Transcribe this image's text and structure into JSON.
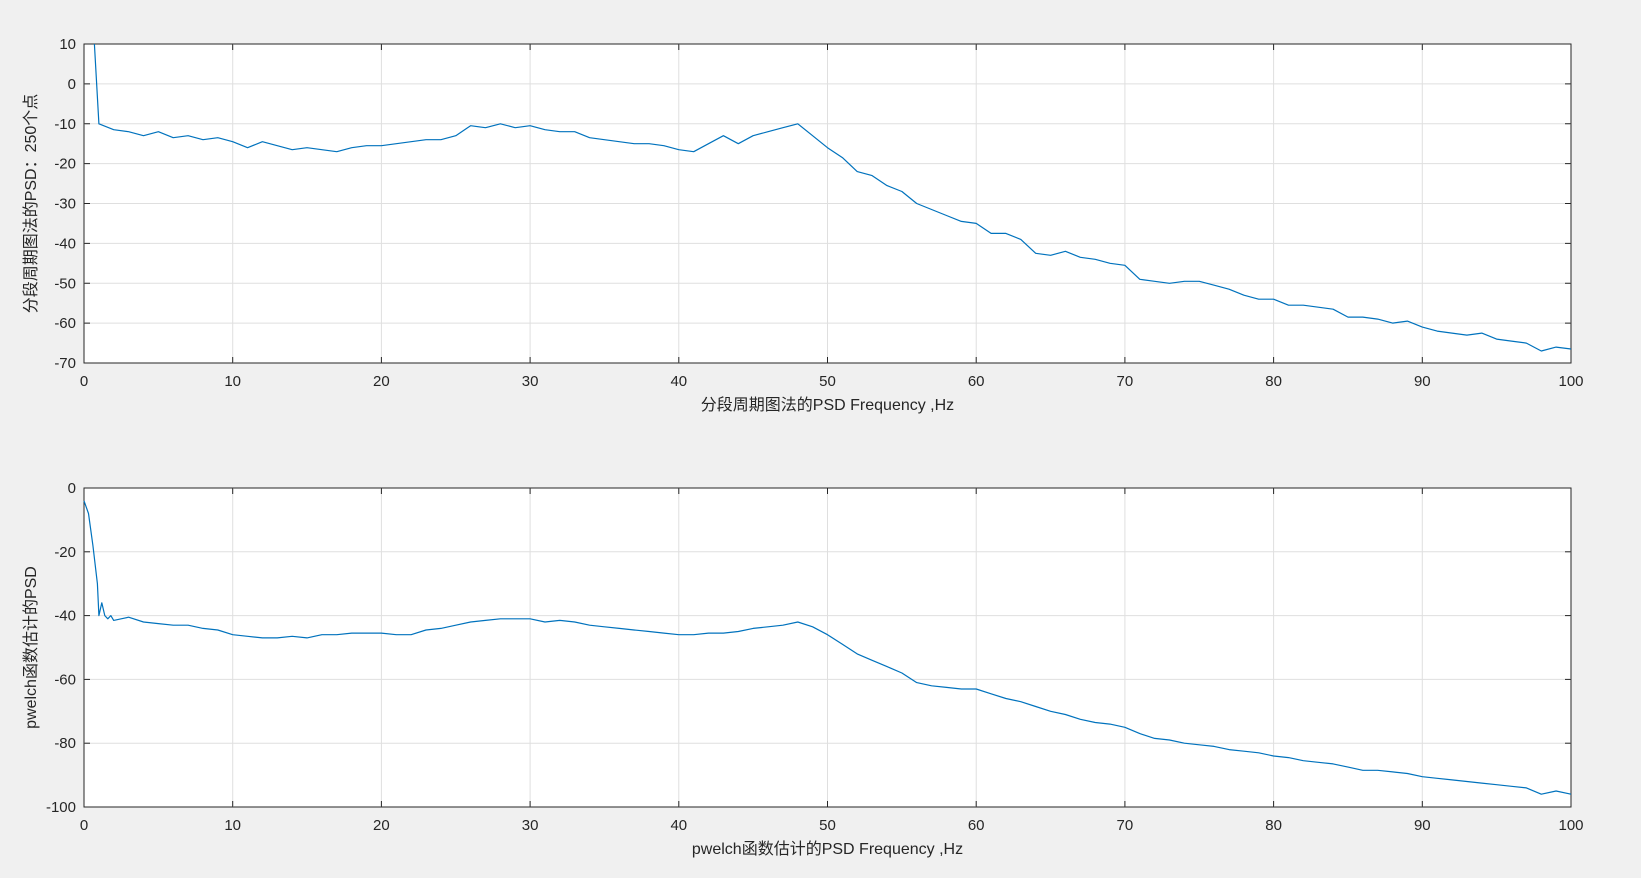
{
  "chart_data": [
    {
      "type": "line",
      "xlabel": "分段周期图法的PSD Frequency ,Hz",
      "ylabel": "分段周期图法的PSD：250个点",
      "xlim": [
        0,
        100
      ],
      "ylim": [
        -70,
        10
      ],
      "xticks": [
        0,
        10,
        20,
        30,
        40,
        50,
        60,
        70,
        80,
        90,
        100
      ],
      "yticks": [
        10,
        0,
        -10,
        -20,
        -30,
        -40,
        -50,
        -60,
        -70
      ],
      "grid": true,
      "color": "#0072bd",
      "series": [
        {
          "x": [
            0.7,
            1,
            2,
            3,
            4,
            5,
            6,
            7,
            8,
            9,
            10,
            11,
            12,
            13,
            14,
            15,
            16,
            17,
            18,
            19,
            20,
            21,
            22,
            23,
            24,
            25,
            26,
            27,
            28,
            29,
            30,
            31,
            32,
            33,
            34,
            35,
            36,
            37,
            38,
            39,
            40,
            41,
            42,
            43,
            44,
            45,
            46,
            47,
            48,
            49,
            50,
            51,
            52,
            53,
            54,
            55,
            56,
            57,
            58,
            59,
            60,
            61,
            62,
            63,
            64,
            65,
            66,
            67,
            68,
            69,
            70,
            71,
            72,
            73,
            74,
            75,
            76,
            77,
            78,
            79,
            80,
            81,
            82,
            83,
            84,
            85,
            86,
            87,
            88,
            89,
            90,
            91,
            92,
            93,
            94,
            95,
            96,
            97,
            98,
            99,
            100
          ],
          "y": [
            10,
            -10,
            -11.5,
            -12,
            -13,
            -12,
            -13.5,
            -13,
            -14,
            -13.5,
            -14.5,
            -16,
            -14.5,
            -15.5,
            -16.5,
            -16,
            -16.5,
            -17,
            -16,
            -15.5,
            -15.5,
            -15,
            -14.5,
            -14,
            -14,
            -13,
            -10.5,
            -11,
            -10,
            -11,
            -10.5,
            -11.5,
            -12,
            -12,
            -13.5,
            -14,
            -14.5,
            -15,
            -15,
            -15.5,
            -16.5,
            -17,
            -15,
            -13,
            -15,
            -13,
            -12,
            -11,
            -10,
            -13,
            -16,
            -18.5,
            -22,
            -23,
            -25.5,
            -27,
            -30,
            -31.5,
            -33,
            -34.5,
            -35,
            -37.5,
            -37.5,
            -39,
            -42.5,
            -43,
            -42,
            -43.5,
            -44,
            -45,
            -45.5,
            -49,
            -49.5,
            -50,
            -49.5,
            -49.5,
            -50.5,
            -51.5,
            -53,
            -54,
            -54,
            -55.5,
            -55.5,
            -56,
            -56.5,
            -58.5,
            -58.5,
            -59,
            -60,
            -59.5,
            -61,
            -62,
            -62.5,
            -63,
            -62.5,
            -64,
            -64.5,
            -65,
            -67,
            -66,
            -66.5
          ]
        }
      ]
    },
    {
      "type": "line",
      "xlabel": "pwelch函数估计的PSD Frequency ,Hz",
      "ylabel": "pwelch函数估计的PSD",
      "xlim": [
        0,
        100
      ],
      "ylim": [
        -100,
        0
      ],
      "xticks": [
        0,
        10,
        20,
        30,
        40,
        50,
        60,
        70,
        80,
        90,
        100
      ],
      "yticks": [
        0,
        -20,
        -40,
        -60,
        -80,
        -100
      ],
      "grid": true,
      "color": "#0072bd",
      "series": [
        {
          "x": [
            0,
            0.3,
            0.6,
            0.9,
            1.0,
            1.2,
            1.4,
            1.6,
            1.8,
            2,
            2.5,
            3,
            4,
            5,
            6,
            7,
            8,
            9,
            10,
            11,
            12,
            13,
            14,
            15,
            16,
            17,
            18,
            19,
            20,
            21,
            22,
            23,
            24,
            25,
            26,
            27,
            28,
            29,
            30,
            31,
            32,
            33,
            34,
            35,
            36,
            37,
            38,
            39,
            40,
            41,
            42,
            43,
            44,
            45,
            46,
            47,
            48,
            49,
            50,
            51,
            52,
            53,
            54,
            55,
            56,
            57,
            58,
            59,
            60,
            61,
            62,
            63,
            64,
            65,
            66,
            67,
            68,
            69,
            70,
            71,
            72,
            73,
            74,
            75,
            76,
            77,
            78,
            79,
            80,
            81,
            82,
            83,
            84,
            85,
            86,
            87,
            88,
            89,
            90,
            91,
            92,
            93,
            94,
            95,
            96,
            97,
            98,
            99,
            100
          ],
          "y": [
            -4,
            -8,
            -18,
            -30,
            -40,
            -36,
            -40,
            -41,
            -40,
            -41.5,
            -41,
            -40.5,
            -42,
            -42.5,
            -43,
            -43,
            -44,
            -44.5,
            -46,
            -46.5,
            -47,
            -47,
            -46.5,
            -47,
            -46,
            -46,
            -45.5,
            -45.5,
            -45.5,
            -46,
            -46,
            -44.5,
            -44,
            -43,
            -42,
            -41.5,
            -41,
            -41,
            -41,
            -42,
            -41.5,
            -42,
            -43,
            -43.5,
            -44,
            -44.5,
            -45,
            -45.5,
            -46,
            -46,
            -45.5,
            -45.5,
            -45,
            -44,
            -43.5,
            -43,
            -42,
            -43.5,
            -46,
            -49,
            -52,
            -54,
            -56,
            -58,
            -61,
            -62,
            -62.5,
            -63,
            -63,
            -64.5,
            -66,
            -67,
            -68.5,
            -70,
            -71,
            -72.5,
            -73.5,
            -74,
            -75,
            -77,
            -78.5,
            -79,
            -80,
            -80.5,
            -81,
            -82,
            -82.5,
            -83,
            -84,
            -84.5,
            -85.5,
            -86,
            -86.5,
            -87.5,
            -88.5,
            -88.5,
            -89,
            -89.5,
            -90.5,
            -91,
            -91.5,
            -92,
            -92.5,
            -93,
            -93.5,
            -94,
            -96,
            -95,
            -96
          ]
        }
      ]
    }
  ]
}
